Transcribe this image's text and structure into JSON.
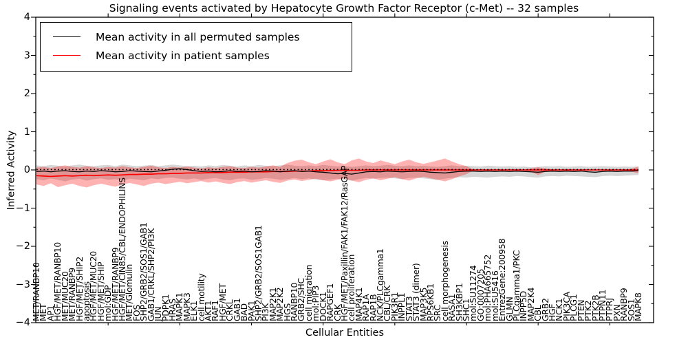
{
  "title": "Signaling events activated by Hepatocyte Growth Factor Receptor (c-Met) -- 32 samples",
  "axis": {
    "ytick_labels": [
      "4",
      "3",
      "2",
      "1",
      "0",
      "−1",
      "−2",
      "−3",
      "−4"
    ],
    "yticks": [
      4,
      3,
      2,
      1,
      0,
      -1,
      -2,
      -3,
      -4
    ]
  },
  "chart_data": {
    "type": "line",
    "title": "Signaling events activated by Hepatocyte Growth Factor Receptor (c-Met) -- 32 samples",
    "xlabel": "Cellular Entities",
    "ylabel": "Inferred Activity",
    "ylim": [
      -4,
      4
    ],
    "grid": false,
    "legend_position": "upper left",
    "categories": [
      "MET/RANBP10",
      "MET",
      "AP1",
      "HGF/MET/RANBP10",
      "MET/MUC20",
      "MET/RANBP9",
      "HGF/MET/SHIP2",
      "apoptosis",
      "HGF/MET/MUC20",
      "HGF/MET/SHIP",
      "mol:GDP",
      "HGF/MET/RANBP9",
      "HGF/MET/CIN85/CBL/ENDOPHILINS",
      "MET/Glomulin",
      "FOS",
      "SHP2/GRB2/SOS1/GAB1",
      "GAB1/CRKL/SHP2/PI3K",
      "JUN",
      "PDPK1",
      "HRAS",
      "MAPK1",
      "MAPK3",
      "ELK1",
      "cell motility",
      "AKT1",
      "RAF1",
      "HGF/MET",
      "CRKL",
      "GAB1",
      "BAD",
      "PAK1",
      "SHP2/GRB2/SOS1GAB1",
      "PI3K",
      "MAP2K1",
      "MAP2K2",
      "HGS",
      "RANBP10",
      "GRB2/SHC",
      "cell migration",
      "mol:PIP3",
      "DOCK1",
      "RAPGEF1",
      "CRK",
      "HGF/MET/Paxillin/FAK1/FAK12/RasGAP",
      "cell proliferation",
      "MAP4K1",
      "RAP1A",
      "RAP1B",
      "NCK/PLCgamma1",
      "CBL/CRK",
      "PIK3R1",
      "INPPL1",
      "STAT3",
      "STAT3 (dimer)",
      "MAP3K5",
      "RPS6KB1",
      "SRC",
      "cell morphogenesis",
      "RASA1",
      "SH3KBP1",
      "SHC1",
      "mol:SU11274",
      "GO:0007205",
      "mol:PHA665752",
      "mol:SU5416",
      "EntrezGene:200958",
      "GLMN",
      "PLCgamma1/PKC",
      "INPP5D",
      "MAP2K4",
      "CBL",
      "GRB2",
      "HGF",
      "NCK1",
      "PIK3CA",
      "PLCG1",
      "PTEN",
      "PTK2",
      "PTK2B",
      "PTPN11",
      "PTPRJ",
      "PXN",
      "RANBP9",
      "SOS1",
      "MAPK8"
    ],
    "series": [
      {
        "name": "Mean activity in all permuted samples",
        "color": "#000000",
        "style": "solid",
        "values": [
          -0.04,
          -0.03,
          -0.05,
          -0.03,
          -0.02,
          -0.04,
          -0.05,
          -0.03,
          -0.04,
          -0.02,
          -0.03,
          -0.05,
          -0.04,
          -0.02,
          -0.03,
          -0.04,
          -0.05,
          -0.03,
          -0.01,
          0.02,
          0.03,
          0.01,
          -0.02,
          -0.04,
          -0.03,
          -0.05,
          -0.04,
          -0.02,
          -0.04,
          -0.03,
          -0.05,
          -0.04,
          -0.02,
          -0.03,
          -0.05,
          -0.03,
          -0.02,
          -0.04,
          -0.03,
          -0.05,
          -0.06,
          -0.08,
          -0.1,
          -0.09,
          -0.11,
          -0.08,
          -0.05,
          -0.04,
          -0.05,
          -0.03,
          -0.04,
          -0.05,
          -0.04,
          -0.03,
          -0.04,
          -0.06,
          -0.07,
          -0.08,
          -0.06,
          -0.04,
          -0.03,
          -0.03,
          -0.04,
          -0.03,
          -0.04,
          -0.03,
          -0.04,
          -0.03,
          -0.04,
          -0.05,
          -0.06,
          -0.04,
          -0.03,
          -0.04,
          -0.03,
          -0.04,
          -0.03,
          -0.05,
          -0.06,
          -0.04,
          -0.03,
          -0.04,
          -0.03,
          -0.03,
          -0.02
        ]
      },
      {
        "name": "Mean activity in patient samples",
        "color": "#ff0000",
        "style": "solid",
        "values": [
          -0.15,
          -0.16,
          -0.17,
          -0.16,
          -0.15,
          -0.16,
          -0.15,
          -0.14,
          -0.15,
          -0.14,
          -0.13,
          -0.14,
          -0.13,
          -0.12,
          -0.12,
          -0.11,
          -0.11,
          -0.1,
          -0.1,
          -0.09,
          -0.09,
          -0.08,
          -0.08,
          -0.08,
          -0.07,
          -0.07,
          -0.07,
          -0.06,
          -0.06,
          -0.06,
          -0.05,
          -0.05,
          -0.05,
          -0.04,
          -0.04,
          -0.04,
          -0.03,
          -0.03,
          -0.03,
          -0.02,
          -0.02,
          -0.02,
          -0.01,
          -0.01,
          -0.01,
          -0.01,
          0.0,
          0.0,
          0.0,
          0.0,
          0.0,
          0.0,
          0.0,
          0.0,
          0.0,
          0.0,
          0.0,
          0.0,
          0.0,
          0.0,
          0.0,
          0.0,
          0.0,
          0.0,
          0.0,
          0.0,
          0.0,
          0.0,
          0.0,
          0.0,
          0.0,
          0.0,
          0.0,
          0.0,
          0.0,
          0.0,
          0.0,
          0.0,
          0.0,
          0.0,
          0.0,
          0.0,
          0.0,
          0.0,
          0.0
        ]
      },
      {
        "name": "median reference (dotted)",
        "color": "#000000",
        "style": "dotted",
        "constant": 0.01
      }
    ],
    "bands": [
      {
        "name": "permuted samples range",
        "color": "rgba(128,128,128,0.32)",
        "upper": [
          0.12,
          0.1,
          0.13,
          0.11,
          0.09,
          0.12,
          0.14,
          0.11,
          0.1,
          0.12,
          0.13,
          0.1,
          0.14,
          0.12,
          0.1,
          0.11,
          0.13,
          0.1,
          0.12,
          0.14,
          0.12,
          0.1,
          0.11,
          0.09,
          0.12,
          0.1,
          0.13,
          0.11,
          0.09,
          0.12,
          0.1,
          0.13,
          0.11,
          0.1,
          0.12,
          0.14,
          0.11,
          0.1,
          0.12,
          0.1,
          0.13,
          0.11,
          0.09,
          0.1,
          0.08,
          0.1,
          0.12,
          0.1,
          0.11,
          0.13,
          0.11,
          0.1,
          0.12,
          0.1,
          0.11,
          0.09,
          0.08,
          0.1,
          0.12,
          0.1,
          0.11,
          0.1,
          0.09,
          0.11,
          0.1,
          0.09,
          0.1,
          0.08,
          0.09,
          0.07,
          0.08,
          0.1,
          0.09,
          0.1,
          0.08,
          0.09,
          0.1,
          0.08,
          0.09,
          0.1,
          0.09,
          0.08,
          0.09,
          0.08,
          0.09
        ],
        "lower": [
          -0.24,
          -0.27,
          -0.22,
          -0.26,
          -0.3,
          -0.25,
          -0.23,
          -0.28,
          -0.24,
          -0.22,
          -0.26,
          -0.24,
          -0.28,
          -0.23,
          -0.25,
          -0.27,
          -0.22,
          -0.24,
          -0.21,
          -0.2,
          -0.23,
          -0.25,
          -0.22,
          -0.26,
          -0.23,
          -0.21,
          -0.25,
          -0.27,
          -0.23,
          -0.22,
          -0.26,
          -0.24,
          -0.21,
          -0.23,
          -0.26,
          -0.24,
          -0.21,
          -0.24,
          -0.22,
          -0.25,
          -0.27,
          -0.25,
          -0.23,
          -0.26,
          -0.28,
          -0.24,
          -0.21,
          -0.23,
          -0.21,
          -0.2,
          -0.22,
          -0.24,
          -0.21,
          -0.2,
          -0.22,
          -0.24,
          -0.26,
          -0.23,
          -0.21,
          -0.19,
          -0.2,
          -0.18,
          -0.19,
          -0.2,
          -0.18,
          -0.17,
          -0.18,
          -0.16,
          -0.17,
          -0.19,
          -0.2,
          -0.17,
          -0.16,
          -0.17,
          -0.15,
          -0.16,
          -0.17,
          -0.18,
          -0.19,
          -0.16,
          -0.15,
          -0.16,
          -0.15,
          -0.14,
          -0.13
        ]
      },
      {
        "name": "patient samples range",
        "color": "rgba(255,0,0,0.30)",
        "upper": [
          0.06,
          0.08,
          0.05,
          0.09,
          0.12,
          0.08,
          0.06,
          0.1,
          0.07,
          0.05,
          0.08,
          0.06,
          0.1,
          0.07,
          0.05,
          0.08,
          0.11,
          0.07,
          0.05,
          0.08,
          0.06,
          0.09,
          0.06,
          0.04,
          0.07,
          0.05,
          0.08,
          0.1,
          0.06,
          0.05,
          0.08,
          0.06,
          0.09,
          0.12,
          0.08,
          0.18,
          0.24,
          0.27,
          0.2,
          0.15,
          0.22,
          0.28,
          0.2,
          0.15,
          0.25,
          0.3,
          0.22,
          0.18,
          0.25,
          0.2,
          0.15,
          0.22,
          0.27,
          0.2,
          0.16,
          0.2,
          0.25,
          0.3,
          0.22,
          0.15,
          0.1,
          0.01,
          0.01,
          0.01,
          0.01,
          0.01,
          0.01,
          0.01,
          0.01,
          0.04,
          0.07,
          0.04,
          0.01,
          0.01,
          0.01,
          0.01,
          0.01,
          0.01,
          0.01,
          0.01,
          0.01,
          0.01,
          0.01,
          0.03,
          0.09
        ],
        "lower": [
          -0.38,
          -0.42,
          -0.35,
          -0.45,
          -0.4,
          -0.36,
          -0.42,
          -0.46,
          -0.4,
          -0.36,
          -0.4,
          -0.44,
          -0.38,
          -0.34,
          -0.38,
          -0.42,
          -0.36,
          -0.33,
          -0.37,
          -0.34,
          -0.31,
          -0.35,
          -0.32,
          -0.29,
          -0.33,
          -0.3,
          -0.34,
          -0.37,
          -0.32,
          -0.29,
          -0.33,
          -0.3,
          -0.27,
          -0.31,
          -0.34,
          -0.28,
          -0.25,
          -0.29,
          -0.26,
          -0.23,
          -0.27,
          -0.3,
          -0.26,
          -0.22,
          -0.28,
          -0.32,
          -0.26,
          -0.22,
          -0.27,
          -0.23,
          -0.19,
          -0.24,
          -0.28,
          -0.22,
          -0.18,
          -0.22,
          -0.26,
          -0.3,
          -0.24,
          -0.17,
          -0.11,
          -0.01,
          -0.01,
          -0.01,
          -0.01,
          -0.01,
          -0.01,
          -0.01,
          -0.01,
          -0.05,
          -0.13,
          -0.05,
          -0.01,
          -0.01,
          -0.01,
          -0.01,
          -0.01,
          -0.01,
          -0.01,
          -0.01,
          -0.01,
          -0.01,
          -0.01,
          -0.04,
          -0.09
        ]
      }
    ]
  }
}
